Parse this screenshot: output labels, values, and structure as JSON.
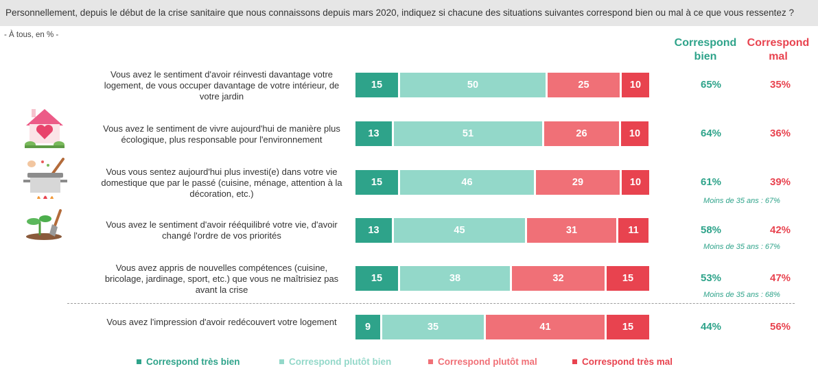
{
  "question": "Personnellement, depuis le début de la crise sanitaire que nous connaissons depuis mars 2020, indiquez si chacune des situations suivantes correspond bien ou mal à ce que vous ressentez ?",
  "base": "- À tous, en % -",
  "col_headers": {
    "good": "Correspond bien",
    "bad": "Correspond mal"
  },
  "colors": {
    "tres_bien": "#2ea38a",
    "plutot_bien": "#93d8c9",
    "plutot_mal": "#f07077",
    "tres_mal": "#e8434f"
  },
  "icons": [
    "house-heart-icon",
    "cooking-pot-icon",
    "gardening-trowel-icon"
  ],
  "chart_data": {
    "type": "bar",
    "orientation": "horizontal",
    "stacked": true,
    "unit": "%",
    "categories": [
      "Vous avez le sentiment d'avoir réinvesti davantage votre logement, de vous occuper davantage de votre intérieur, de votre jardin",
      "Vous avez le sentiment de vivre aujourd'hui de manière plus écologique, plus responsable pour l'environnement",
      "Vous vous sentez aujourd'hui plus investi(e) dans votre vie domestique que par le passé (cuisine, ménage, attention à la décoration, etc.)",
      "Vous avez le sentiment d'avoir rééquilibré votre vie, d'avoir changé l'ordre de vos priorités",
      "Vous avez appris de nouvelles compétences (cuisine, bricolage, jardinage, sport, etc.) que vous ne maîtrisiez pas avant la crise",
      "Vous avez l'impression d'avoir redécouvert votre logement"
    ],
    "series": [
      {
        "name": "Correspond très bien",
        "values": [
          15,
          13,
          15,
          13,
          15,
          9
        ]
      },
      {
        "name": "Correspond plutôt bien",
        "values": [
          50,
          51,
          46,
          45,
          38,
          35
        ]
      },
      {
        "name": "Correspond plutôt mal",
        "values": [
          25,
          26,
          29,
          31,
          32,
          41
        ]
      },
      {
        "name": "Correspond très mal",
        "values": [
          10,
          10,
          10,
          11,
          15,
          15
        ]
      }
    ],
    "totals_good": [
      "65%",
      "64%",
      "61%",
      "58%",
      "53%",
      "44%"
    ],
    "totals_bad": [
      "35%",
      "36%",
      "39%",
      "42%",
      "47%",
      "56%"
    ],
    "notes": [
      "",
      "",
      "Moins de 35 ans : 67%",
      "Moins de 35 ans : 67%",
      "Moins de 35 ans : 68%",
      ""
    ],
    "legend_position": "bottom"
  }
}
